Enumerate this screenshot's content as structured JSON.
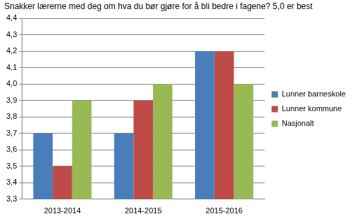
{
  "chart_data": {
    "type": "bar",
    "title": "Snakker lærerne med deg om hva du bør gjøre for å bli bedre i fagene? 5,0 er best",
    "categories": [
      "2013-2014",
      "2014-2015",
      "2015-2016"
    ],
    "series": [
      {
        "name": "Lunner barneskole",
        "color": "#4a7ebb",
        "values": [
          3.7,
          3.7,
          4.2
        ]
      },
      {
        "name": "Lunner kommune",
        "color": "#be4b48",
        "values": [
          3.5,
          3.9,
          4.2
        ]
      },
      {
        "name": "Nasjonalt",
        "color": "#98b954",
        "values": [
          3.9,
          4.0,
          4.0
        ]
      }
    ],
    "ylim": [
      3.3,
      4.4
    ],
    "yticks": [
      {
        "value": 3.3,
        "label": "3,3"
      },
      {
        "value": 3.4,
        "label": "3,4"
      },
      {
        "value": 3.5,
        "label": "3,5"
      },
      {
        "value": 3.6,
        "label": "3,6"
      },
      {
        "value": 3.7,
        "label": "3,7"
      },
      {
        "value": 3.8,
        "label": "3,8"
      },
      {
        "value": 3.9,
        "label": "3,9"
      },
      {
        "value": 4.0,
        "label": "4,0"
      },
      {
        "value": 4.1,
        "label": "4,1"
      },
      {
        "value": 4.2,
        "label": "4,2"
      },
      {
        "value": 4.3,
        "label": "4,3"
      },
      {
        "value": 4.4,
        "label": "4,4"
      }
    ],
    "grid": true,
    "legend": "right"
  }
}
